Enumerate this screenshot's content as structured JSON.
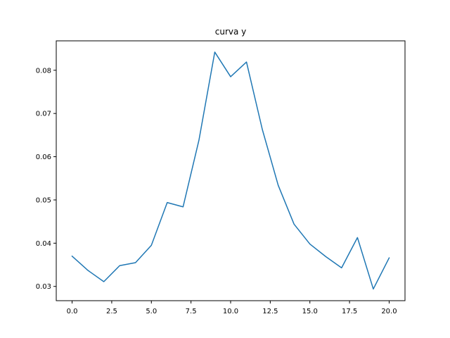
{
  "chart_data": {
    "type": "line",
    "title": "curva y",
    "xlabel": "",
    "ylabel": "",
    "xlim": [
      -1.0,
      21.0
    ],
    "ylim": [
      0.0267,
      0.0868
    ],
    "xticks": [
      0.0,
      2.5,
      5.0,
      7.5,
      10.0,
      12.5,
      15.0,
      17.5,
      20.0
    ],
    "xtick_labels": [
      "0.0",
      "2.5",
      "5.0",
      "7.5",
      "10.0",
      "12.5",
      "15.0",
      "17.5",
      "20.0"
    ],
    "yticks": [
      0.03,
      0.04,
      0.05,
      0.06,
      0.07,
      0.08
    ],
    "ytick_labels": [
      "0.03",
      "0.04",
      "0.05",
      "0.06",
      "0.07",
      "0.08"
    ],
    "grid": false,
    "series": [
      {
        "color": "#1f77b4",
        "x": [
          0,
          1,
          2,
          3,
          4,
          5,
          6,
          7,
          8,
          9,
          10,
          11,
          12,
          13,
          14,
          15,
          16,
          17,
          18,
          19,
          20
        ],
        "y": [
          0.037,
          0.0337,
          0.0311,
          0.0348,
          0.0355,
          0.0395,
          0.0494,
          0.0484,
          0.0638,
          0.0842,
          0.0785,
          0.0819,
          0.0663,
          0.0534,
          0.0444,
          0.0398,
          0.0369,
          0.0343,
          0.0413,
          0.0294,
          0.0366
        ]
      }
    ]
  }
}
